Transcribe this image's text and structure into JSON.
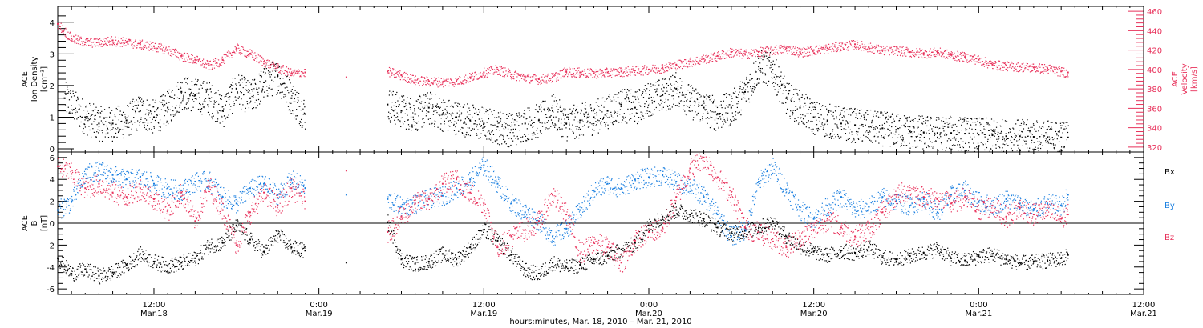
{
  "chart_data": {
    "type": "scatter",
    "xaxis": {
      "label": "hours:minutes, Mar. 18, 2010 – Mar. 21, 2010",
      "range_hours": [
        5,
        84
      ],
      "ticks": [
        {
          "hour": 12,
          "time": "12:00",
          "date": "Mar.18"
        },
        {
          "hour": 24,
          "time": "0:00",
          "date": "Mar.19"
        },
        {
          "hour": 36,
          "time": "12:00",
          "date": "Mar.19"
        },
        {
          "hour": 48,
          "time": "0:00",
          "date": "Mar.20"
        },
        {
          "hour": 60,
          "time": "12:00",
          "date": "Mar.20"
        },
        {
          "hour": 72,
          "time": "0:00",
          "date": "Mar.21"
        },
        {
          "hour": 84,
          "time": "12:00",
          "date": "Mar.21"
        }
      ]
    },
    "panels": [
      {
        "id": "density-velocity",
        "ylabel_lines": [
          "ACE",
          "Ion Density",
          "[cm⁻³]"
        ],
        "ylim": [
          -0.1,
          4.5
        ],
        "yticks": [
          "0",
          "1",
          "2",
          "3",
          "4"
        ],
        "ylabel_right_lines": [
          "ACE",
          "Velocity",
          "[km/s]"
        ],
        "ylim_right": [
          315,
          465
        ],
        "yticks_right": [
          "320",
          "340",
          "360",
          "380",
          "400",
          "420",
          "440",
          "460"
        ],
        "series": [
          {
            "axis": "left",
            "color": "#000000",
            "hours": [
              5.5,
              7,
              8,
              9,
              10,
              11,
              12,
              13,
              14,
              15,
              16,
              17,
              18,
              19,
              20,
              21,
              22,
              23,
              29,
              30,
              31,
              32,
              33,
              34,
              35,
              36,
              37,
              38,
              39,
              40,
              41,
              42,
              43,
              44,
              45,
              46,
              47,
              48,
              49,
              50,
              51,
              52,
              53,
              54,
              55,
              56,
              57,
              58,
              59,
              60,
              61,
              62,
              63,
              64,
              65,
              66,
              67,
              68,
              69,
              70,
              71,
              72,
              73,
              74,
              75,
              76,
              77,
              78,
              78.5
            ],
            "values": [
              1.6,
              1.0,
              0.8,
              0.8,
              0.9,
              1.2,
              1.0,
              1.3,
              1.8,
              1.7,
              1.6,
              1.2,
              1.9,
              1.6,
              2.1,
              2.3,
              1.6,
              1.1,
              1.4,
              1.2,
              1.1,
              1.3,
              1.1,
              1.0,
              0.9,
              0.8,
              0.7,
              0.6,
              0.8,
              0.9,
              1.2,
              0.8,
              0.9,
              1.0,
              1.2,
              1.4,
              1.3,
              1.6,
              1.7,
              1.9,
              1.5,
              1.3,
              1.1,
              1.3,
              1.8,
              2.6,
              2.5,
              1.6,
              1.3,
              1.0,
              0.9,
              0.8,
              0.75,
              0.7,
              0.65,
              0.6,
              0.55,
              0.52,
              0.5,
              0.5,
              0.48,
              0.45,
              0.43,
              0.4,
              0.4,
              0.38,
              0.37,
              0.36,
              0.36
            ]
          },
          {
            "axis": "right",
            "color": "#e8305a",
            "hours": [
              5,
              6,
              7,
              8,
              9,
              10,
              11,
              12,
              13,
              14,
              15,
              16,
              17,
              18,
              19,
              20,
              21,
              22,
              23,
              26,
              29,
              30,
              31,
              32,
              33,
              34,
              35,
              36,
              37,
              38,
              39,
              40,
              41,
              42,
              43,
              44,
              45,
              46,
              47,
              48,
              49,
              50,
              51,
              52,
              53,
              54,
              55,
              56,
              57,
              58,
              59,
              60,
              61,
              62,
              63,
              64,
              65,
              66,
              67,
              68,
              69,
              70,
              71,
              72,
              73,
              74,
              75,
              76,
              77,
              78,
              78.5
            ],
            "values": [
              447,
              432,
              428,
              428,
              430,
              428,
              426,
              424,
              420,
              414,
              410,
              404,
              410,
              422,
              416,
              408,
              402,
              396,
              397,
              392,
              398,
              394,
              389,
              388,
              387,
              388,
              392,
              397,
              400,
              395,
              392,
              390,
              392,
              398,
              397,
              396,
              397,
              398,
              399,
              400,
              402,
              405,
              408,
              411,
              414,
              418,
              416,
              418,
              420,
              422,
              418,
              420,
              422,
              424,
              426,
              423,
              420,
              420,
              418,
              417,
              418,
              415,
              413,
              410,
              405,
              404,
              403,
              402,
              401,
              398,
              397
            ]
          }
        ]
      },
      {
        "id": "magnetic-field",
        "ylabel_lines": [
          "ACE",
          "B",
          "[nT]"
        ],
        "ylim": [
          -6.5,
          6.5
        ],
        "yticks": [
          "-6",
          "-4",
          "-2",
          "0",
          "2",
          "4",
          "6"
        ],
        "series": [
          {
            "name": "Bx",
            "color": "#000000",
            "hours": [
              5,
              6,
              7,
              8,
              9,
              10,
              11,
              12,
              13,
              14,
              15,
              16,
              17,
              18,
              19,
              20,
              21,
              22,
              23,
              26,
              29,
              30,
              31,
              32,
              33,
              34,
              35,
              36,
              37,
              38,
              39,
              40,
              41,
              42,
              43,
              44,
              45,
              46,
              47,
              48,
              49,
              50,
              51,
              52,
              53,
              54,
              55,
              56,
              57,
              58,
              59,
              60,
              61,
              62,
              63,
              64,
              65,
              66,
              67,
              68,
              69,
              70,
              71,
              72,
              73,
              74,
              75,
              76,
              77,
              78,
              78.5
            ],
            "values": [
              -3.2,
              -4.6,
              -4.2,
              -4.8,
              -4.5,
              -3.8,
              -2.8,
              -3.5,
              -3.9,
              -3.6,
              -3.2,
              -2.0,
              -1.8,
              -0.2,
              -1.5,
              -2.6,
              -1.0,
              -2.2,
              -2.5,
              -3.6,
              0.1,
              -3.3,
              -3.7,
              -3.5,
              -2.8,
              -3.3,
              -2.2,
              -0.6,
              -1.6,
              -2.9,
              -4.3,
              -4.6,
              -3.6,
              -4.0,
              -3.8,
              -3.3,
              -3.0,
              -2.4,
              -1.8,
              -0.2,
              0.6,
              1.2,
              0.8,
              0.4,
              -0.4,
              -0.9,
              -0.7,
              -0.4,
              0.2,
              -1.2,
              -2.1,
              -2.6,
              -2.9,
              -2.5,
              -2.7,
              -2.2,
              -3.1,
              -3.3,
              -3.0,
              -2.7,
              -2.3,
              -3.2,
              -3.4,
              -3.0,
              -2.8,
              -3.3,
              -3.6,
              -3.5,
              -3.4,
              -3.2,
              -2.9
            ]
          },
          {
            "name": "By",
            "color": "#1a7fe0",
            "hours": [
              5,
              6,
              7,
              8,
              9,
              10,
              11,
              12,
              13,
              14,
              15,
              16,
              17,
              18,
              19,
              20,
              21,
              22,
              23,
              26,
              29,
              30,
              31,
              32,
              33,
              34,
              35,
              36,
              37,
              38,
              39,
              40,
              41,
              42,
              43,
              44,
              45,
              46,
              47,
              48,
              49,
              50,
              51,
              52,
              53,
              54,
              55,
              56,
              57,
              58,
              59,
              60,
              61,
              62,
              63,
              64,
              65,
              66,
              67,
              68,
              69,
              70,
              71,
              72,
              73,
              74,
              75,
              76,
              77,
              78,
              78.5
            ],
            "values": [
              1.2,
              2.0,
              4.5,
              4.8,
              4.4,
              4.0,
              4.2,
              3.6,
              3.2,
              3.0,
              3.8,
              3.9,
              2.4,
              1.8,
              3.2,
              3.6,
              2.6,
              4.0,
              3.2,
              2.6,
              2.2,
              1.5,
              1.8,
              2.3,
              2.5,
              3.2,
              4.0,
              5.3,
              3.6,
              1.8,
              1.0,
              0.2,
              -1.2,
              -0.5,
              1.2,
              3.0,
              3.6,
              3.2,
              4.0,
              4.2,
              4.4,
              3.8,
              3.4,
              2.4,
              0.8,
              -1.2,
              -0.6,
              3.8,
              5.2,
              3.1,
              1.2,
              0.4,
              1.6,
              2.4,
              1.2,
              1.5,
              2.4,
              2.0,
              1.6,
              2.2,
              1.0,
              2.6,
              3.0,
              2.0,
              1.6,
              2.2,
              1.8,
              1.2,
              1.8,
              1.6,
              2.6
            ]
          },
          {
            "name": "Bz",
            "color": "#e8305a",
            "hours": [
              5,
              6,
              7,
              8,
              9,
              10,
              11,
              12,
              13,
              14,
              15,
              16,
              17,
              18,
              19,
              20,
              21,
              22,
              23,
              26,
              29,
              30,
              31,
              32,
              33,
              34,
              35,
              36,
              37,
              38,
              39,
              40,
              41,
              42,
              43,
              44,
              45,
              46,
              47,
              48,
              49,
              50,
              51,
              52,
              53,
              54,
              55,
              56,
              57,
              58,
              59,
              60,
              61,
              62,
              63,
              64,
              65,
              66,
              67,
              68,
              69,
              70,
              71,
              72,
              73,
              74,
              75,
              76,
              77,
              78,
              78.5
            ],
            "values": [
              5.2,
              4.5,
              3.2,
              3.6,
              2.8,
              2.4,
              3.2,
              2.2,
              1.2,
              2.8,
              0.2,
              3.4,
              1.2,
              -2.0,
              1.0,
              2.8,
              1.6,
              3.2,
              2.0,
              4.8,
              -0.8,
              0.6,
              1.8,
              2.2,
              3.6,
              4.0,
              2.8,
              1.8,
              -2.2,
              -1.2,
              -0.6,
              0.2,
              2.6,
              0.8,
              -2.8,
              -1.8,
              -2.2,
              -3.6,
              -1.6,
              -0.8,
              -0.4,
              2.4,
              5.0,
              6.0,
              4.2,
              2.6,
              -0.4,
              -0.8,
              -1.4,
              -2.2,
              -1.2,
              -0.6,
              0.4,
              -0.4,
              -1.2,
              -0.6,
              1.0,
              2.6,
              3.0,
              2.4,
              2.2,
              1.8,
              2.4,
              1.2,
              1.6,
              0.6,
              1.4,
              0.8,
              1.2,
              0.4,
              0.8
            ]
          }
        ]
      }
    ]
  }
}
